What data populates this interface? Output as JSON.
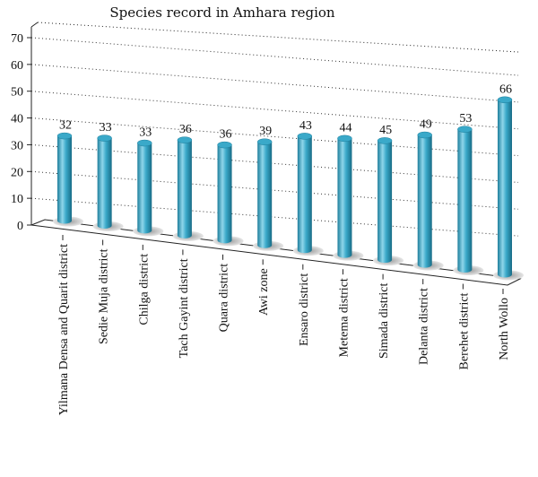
{
  "chart_data": {
    "type": "bar",
    "title": "Species record in Amhara region",
    "categories": [
      "Yilmana Densa and Quarit district",
      "Sedie Muja district",
      "Chilga district",
      "Tach Gayint district",
      "Quara district",
      "Awi zone",
      "Ensaro district",
      "Metema district",
      "Simada district",
      "Delanta district",
      "Berehet district",
      "North Wollo"
    ],
    "values": [
      32,
      33,
      33,
      36,
      36,
      39,
      43,
      44,
      45,
      49,
      53,
      66
    ],
    "yticks": [
      "0",
      "10",
      "20",
      "30",
      "40",
      "50",
      "60",
      "70"
    ],
    "ylim": [
      0,
      70
    ],
    "grid": true,
    "colors": {
      "bar": "#3aa9c9",
      "bar_light": "#8fd6ea",
      "bar_dark": "#1d7e9c"
    }
  }
}
